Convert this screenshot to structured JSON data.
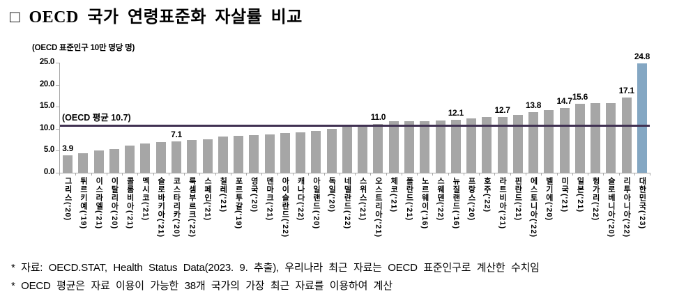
{
  "title": "□ OECD 국가 연령표준화 자살률 비교",
  "unit_label": "(OECD 표준인구 10만 명당 명)",
  "colors": {
    "bar": "#a6a6a6",
    "highlight_bar": "#84a7c3",
    "reference_line": "#403152",
    "axis": "#a6a6a6",
    "text": "#000000"
  },
  "chart_data": {
    "type": "bar",
    "title": "OECD 국가 연령표준화 자살률 비교",
    "ylabel": "(OECD 표준인구 10만 명당 명)",
    "xlabel": "",
    "ylim": [
      0,
      25
    ],
    "grid": false,
    "legend": false,
    "yaxis_ticks": [
      "0.0",
      "5.0",
      "10.0",
      "15.0",
      "20.0",
      "25.0"
    ],
    "reference_line": {
      "value": 10.7,
      "label": "(OECD 평균 10.7)"
    },
    "highlight_index": 37,
    "categories": [
      "그리스('20)",
      "튀르키예('19)",
      "이스라엘('21)",
      "이탈리아('20)",
      "콜롬비아('21)",
      "멕시코('21)",
      "슬로바키아('21)",
      "코스타리카('20)",
      "룩셈부르크('22)",
      "스페인('21)",
      "칠레('21)",
      "포르투갈('19)",
      "영국('20)",
      "덴마크('21)",
      "아이슬란드('22)",
      "캐나다('22)",
      "아일랜드('20)",
      "독일('20)",
      "네델란드('22)",
      "스위스('21)",
      "오스트리아('21)",
      "체코('21)",
      "폴란드('21)",
      "노르웨이('16)",
      "스웨덴('22)",
      "뉴질랜드('16)",
      "프랑스('20)",
      "호주('22)",
      "라트비아('21)",
      "핀란드('21)",
      "에스토니아('22)",
      "벨기에('20)",
      "미국('21)",
      "일본('21)",
      "헝가리('22)",
      "슬로베니아('20)",
      "리투아니아('22)",
      "대한민국('23)"
    ],
    "values": [
      3.9,
      4.5,
      5.1,
      5.4,
      6.1,
      6.7,
      6.9,
      7.1,
      7.5,
      7.6,
      8.2,
      8.4,
      8.5,
      8.7,
      9.1,
      9.2,
      9.5,
      9.9,
      10.5,
      10.6,
      11.0,
      11.7,
      11.7,
      11.7,
      11.8,
      12.1,
      12.4,
      12.6,
      12.7,
      13.1,
      13.8,
      14.3,
      14.7,
      15.6,
      15.8,
      15.8,
      17.1,
      24.8
    ],
    "data_labels": [
      "3.9",
      null,
      null,
      null,
      null,
      null,
      null,
      "7.1",
      null,
      null,
      null,
      null,
      null,
      null,
      null,
      null,
      null,
      null,
      null,
      null,
      "11.0",
      null,
      null,
      null,
      null,
      "12.1",
      null,
      null,
      "12.7",
      null,
      "13.8",
      null,
      "14.7",
      "15.6",
      null,
      null,
      "17.1",
      "24.8"
    ]
  },
  "footnotes": [
    "* 자료: OECD.STAT, Health Status Data(2023. 9. 추출), 우리나라 최근 자료는 OECD 표준인구로 계산한 수치임",
    "* OECD 평균은 자료 이용이 가능한 38개 국가의 가장 최근 자료를 이용하여 계산"
  ]
}
